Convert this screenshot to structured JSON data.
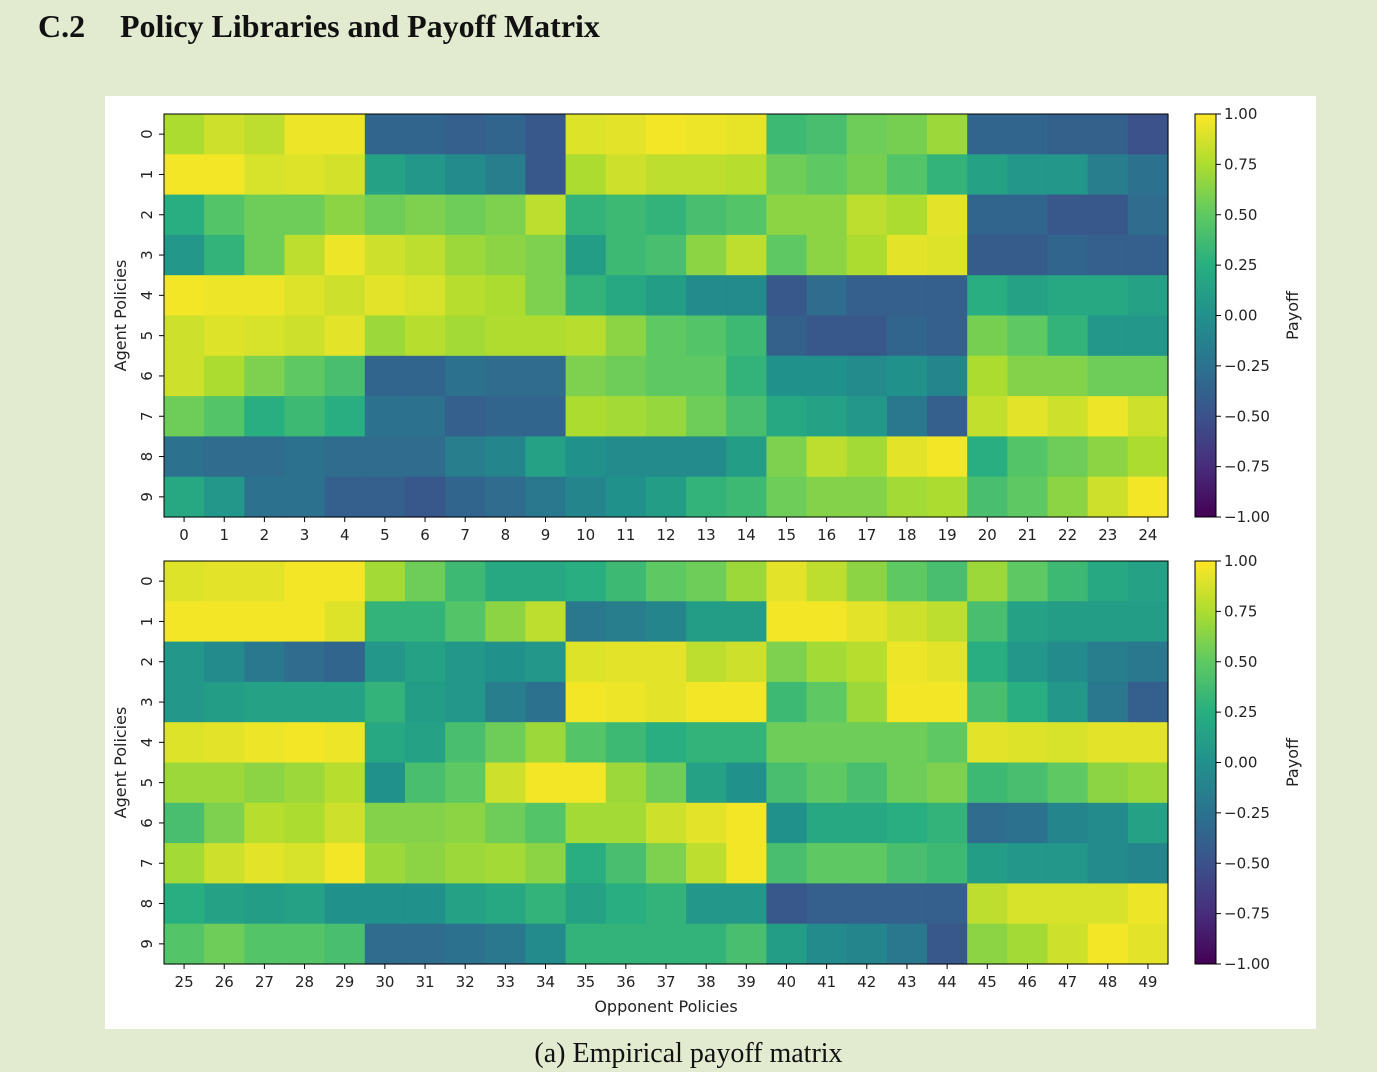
{
  "section": {
    "number": "C.2",
    "title": "Policy Libraries and Payoff Matrix"
  },
  "caption": "(a) Empirical payoff matrix",
  "chart_data": [
    {
      "type": "heatmap",
      "ylabel": "Agent Policies",
      "xlabel": "",
      "colorbar_label": "Payoff",
      "colormap": "viridis",
      "vmin": -1.0,
      "vmax": 1.0,
      "colorbar_ticks": [
        "1.00",
        "0.75",
        "0.50",
        "0.25",
        "0.00",
        "−0.25",
        "−0.50",
        "−0.75",
        "−1.00"
      ],
      "x_labels": [
        "0",
        "1",
        "2",
        "3",
        "4",
        "5",
        "6",
        "7",
        "8",
        "9",
        "10",
        "11",
        "12",
        "13",
        "14",
        "15",
        "16",
        "17",
        "18",
        "19",
        "20",
        "21",
        "22",
        "23",
        "24"
      ],
      "y_labels": [
        "0",
        "1",
        "2",
        "3",
        "4",
        "5",
        "6",
        "7",
        "8",
        "9"
      ],
      "values": [
        [
          0.75,
          0.85,
          0.8,
          0.95,
          0.95,
          -0.35,
          -0.35,
          -0.4,
          -0.35,
          -0.45,
          0.9,
          0.92,
          0.97,
          0.95,
          0.93,
          0.35,
          0.4,
          0.55,
          0.58,
          0.7,
          -0.35,
          -0.35,
          -0.38,
          -0.38,
          -0.5
        ],
        [
          0.97,
          0.97,
          0.88,
          0.9,
          0.87,
          0.15,
          0.05,
          -0.05,
          -0.15,
          -0.45,
          0.75,
          0.85,
          0.8,
          0.8,
          0.78,
          0.55,
          0.5,
          0.58,
          0.45,
          0.3,
          0.15,
          0.05,
          0.05,
          -0.15,
          -0.25
        ],
        [
          0.25,
          0.45,
          0.55,
          0.55,
          0.65,
          0.55,
          0.6,
          0.55,
          0.6,
          0.8,
          0.3,
          0.35,
          0.3,
          0.4,
          0.45,
          0.65,
          0.65,
          0.8,
          0.75,
          0.92,
          -0.35,
          -0.35,
          -0.45,
          -0.45,
          -0.3
        ],
        [
          0.05,
          0.3,
          0.55,
          0.8,
          0.95,
          0.85,
          0.8,
          0.7,
          0.65,
          0.6,
          0.1,
          0.35,
          0.4,
          0.65,
          0.8,
          0.5,
          0.65,
          0.75,
          0.92,
          0.9,
          -0.42,
          -0.42,
          -0.35,
          -0.4,
          -0.4
        ],
        [
          0.97,
          0.95,
          0.95,
          0.9,
          0.85,
          0.92,
          0.88,
          0.78,
          0.75,
          0.6,
          0.3,
          0.2,
          0.1,
          -0.05,
          -0.05,
          -0.45,
          -0.3,
          -0.4,
          -0.4,
          -0.4,
          0.25,
          0.15,
          0.2,
          0.2,
          0.15
        ],
        [
          0.85,
          0.9,
          0.88,
          0.85,
          0.92,
          0.7,
          0.78,
          0.72,
          0.76,
          0.76,
          0.78,
          0.65,
          0.5,
          0.45,
          0.35,
          -0.38,
          -0.45,
          -0.45,
          -0.35,
          -0.4,
          0.58,
          0.5,
          0.3,
          0.05,
          0.05
        ],
        [
          0.85,
          0.75,
          0.6,
          0.5,
          0.4,
          -0.35,
          -0.35,
          -0.25,
          -0.3,
          -0.3,
          0.6,
          0.55,
          0.5,
          0.5,
          0.3,
          0.0,
          0.0,
          -0.05,
          0.0,
          -0.1,
          0.75,
          0.62,
          0.62,
          0.55,
          0.55
        ],
        [
          0.55,
          0.45,
          0.25,
          0.35,
          0.25,
          -0.25,
          -0.25,
          -0.4,
          -0.35,
          -0.35,
          0.75,
          0.72,
          0.68,
          0.55,
          0.4,
          0.2,
          0.15,
          0.05,
          -0.2,
          -0.4,
          0.82,
          0.92,
          0.85,
          0.95,
          0.85
        ],
        [
          -0.25,
          -0.3,
          -0.3,
          -0.25,
          -0.3,
          -0.3,
          -0.3,
          -0.15,
          -0.1,
          0.15,
          0.0,
          -0.05,
          -0.05,
          -0.05,
          0.1,
          0.6,
          0.8,
          0.72,
          0.92,
          0.97,
          0.25,
          0.45,
          0.55,
          0.65,
          0.75
        ],
        [
          0.2,
          0.05,
          -0.25,
          -0.25,
          -0.4,
          -0.4,
          -0.45,
          -0.35,
          -0.3,
          -0.2,
          -0.1,
          0.0,
          0.1,
          0.3,
          0.35,
          0.55,
          0.62,
          0.62,
          0.72,
          0.75,
          0.4,
          0.5,
          0.65,
          0.85,
          0.97
        ]
      ]
    },
    {
      "type": "heatmap",
      "ylabel": "Agent Policies",
      "xlabel": "Opponent Policies",
      "colorbar_label": "Payoff",
      "colormap": "viridis",
      "vmin": -1.0,
      "vmax": 1.0,
      "colorbar_ticks": [
        "1.00",
        "0.75",
        "0.50",
        "0.25",
        "0.00",
        "−0.25",
        "−0.50",
        "−0.75",
        "−1.00"
      ],
      "x_labels": [
        "25",
        "26",
        "27",
        "28",
        "29",
        "30",
        "31",
        "32",
        "33",
        "34",
        "35",
        "36",
        "37",
        "38",
        "39",
        "40",
        "41",
        "42",
        "43",
        "44",
        "45",
        "46",
        "47",
        "48",
        "49"
      ],
      "y_labels": [
        "0",
        "1",
        "2",
        "3",
        "4",
        "5",
        "6",
        "7",
        "8",
        "9"
      ],
      "values": [
        [
          0.9,
          0.92,
          0.92,
          0.97,
          0.97,
          0.72,
          0.55,
          0.35,
          0.2,
          0.2,
          0.25,
          0.35,
          0.5,
          0.55,
          0.7,
          0.92,
          0.8,
          0.65,
          0.5,
          0.4,
          0.7,
          0.5,
          0.35,
          0.2,
          0.15
        ],
        [
          0.97,
          0.97,
          0.97,
          0.97,
          0.9,
          0.3,
          0.3,
          0.45,
          0.65,
          0.8,
          -0.2,
          -0.15,
          -0.1,
          0.1,
          0.1,
          0.97,
          0.97,
          0.92,
          0.85,
          0.8,
          0.4,
          0.15,
          0.1,
          0.1,
          0.1
        ],
        [
          0.05,
          -0.05,
          -0.2,
          -0.3,
          -0.35,
          0.05,
          0.15,
          0.05,
          0.0,
          0.05,
          0.9,
          0.92,
          0.92,
          0.8,
          0.85,
          0.6,
          0.72,
          0.78,
          0.95,
          0.92,
          0.25,
          0.05,
          -0.05,
          -0.15,
          -0.2
        ],
        [
          0.05,
          0.1,
          0.15,
          0.15,
          0.15,
          0.3,
          0.1,
          0.05,
          -0.15,
          -0.25,
          0.97,
          0.95,
          0.92,
          0.97,
          0.97,
          0.35,
          0.5,
          0.7,
          0.97,
          0.97,
          0.4,
          0.25,
          0.05,
          -0.2,
          -0.4
        ],
        [
          0.9,
          0.92,
          0.95,
          0.97,
          0.95,
          0.2,
          0.15,
          0.4,
          0.55,
          0.7,
          0.45,
          0.35,
          0.25,
          0.3,
          0.3,
          0.55,
          0.55,
          0.55,
          0.55,
          0.5,
          0.92,
          0.9,
          0.88,
          0.92,
          0.92
        ],
        [
          0.7,
          0.7,
          0.65,
          0.7,
          0.78,
          0.0,
          0.4,
          0.5,
          0.85,
          0.97,
          0.97,
          0.7,
          0.55,
          0.15,
          0.0,
          0.4,
          0.5,
          0.4,
          0.55,
          0.6,
          0.35,
          0.4,
          0.5,
          0.65,
          0.7
        ],
        [
          0.4,
          0.6,
          0.78,
          0.75,
          0.85,
          0.62,
          0.62,
          0.65,
          0.55,
          0.45,
          0.72,
          0.72,
          0.85,
          0.92,
          0.97,
          0.0,
          0.2,
          0.2,
          0.25,
          0.3,
          -0.3,
          -0.25,
          -0.1,
          -0.05,
          0.15
        ],
        [
          0.72,
          0.85,
          0.92,
          0.88,
          0.97,
          0.7,
          0.65,
          0.7,
          0.72,
          0.65,
          0.25,
          0.4,
          0.6,
          0.8,
          0.97,
          0.4,
          0.5,
          0.5,
          0.4,
          0.35,
          0.1,
          0.05,
          0.05,
          -0.05,
          -0.1
        ],
        [
          0.25,
          0.15,
          0.1,
          0.15,
          0.0,
          0.0,
          0.0,
          0.15,
          0.2,
          0.3,
          0.15,
          0.25,
          0.3,
          0.05,
          0.05,
          -0.45,
          -0.4,
          -0.4,
          -0.4,
          -0.4,
          0.8,
          0.88,
          0.88,
          0.88,
          0.95
        ],
        [
          0.45,
          0.55,
          0.45,
          0.45,
          0.4,
          -0.3,
          -0.3,
          -0.25,
          -0.2,
          -0.05,
          0.3,
          0.3,
          0.3,
          0.3,
          0.4,
          0.1,
          -0.05,
          -0.1,
          -0.2,
          -0.45,
          0.65,
          0.72,
          0.85,
          0.97,
          0.92
        ]
      ]
    }
  ]
}
